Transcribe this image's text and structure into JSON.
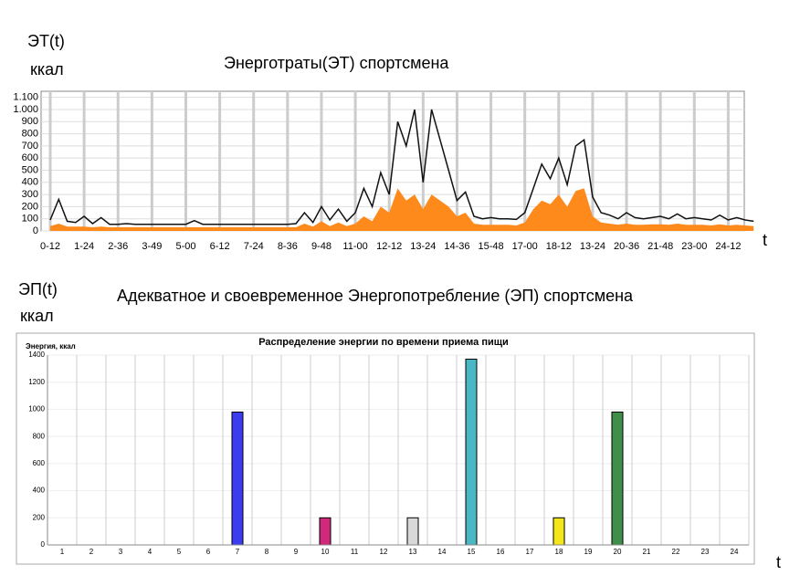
{
  "chart_data": [
    {
      "type": "line",
      "title": "Энерготраты(ЭТ) спортсмена",
      "y_label": "ЭТ(t)",
      "y_unit": "ккал",
      "x_label": "t",
      "categories": [
        "0-12",
        null,
        null,
        null,
        "1-24",
        null,
        null,
        null,
        "2-36",
        null,
        null,
        null,
        "3-49",
        null,
        null,
        null,
        "5-00",
        null,
        null,
        null,
        "6-12",
        null,
        null,
        null,
        "7-24",
        null,
        null,
        null,
        "8-36",
        null,
        null,
        null,
        "9-48",
        null,
        null,
        null,
        "11-00",
        null,
        null,
        null,
        "12-12",
        null,
        null,
        null,
        "13-24",
        null,
        null,
        null,
        "14-36",
        null,
        null,
        null,
        "15-48",
        null,
        null,
        null,
        "17-00",
        null,
        null,
        null,
        "18-12",
        null,
        null,
        null,
        "13-24",
        null,
        null,
        null,
        "20-36",
        null,
        null,
        null,
        "21-48",
        null,
        null,
        null,
        "23-00",
        null,
        null,
        null,
        "24-12",
        null,
        null,
        null
      ],
      "series": [
        {
          "color": "#ff8a1c",
          "fill": true,
          "values": [
            40,
            60,
            35,
            35,
            35,
            30,
            35,
            30,
            30,
            30,
            30,
            30,
            30,
            30,
            30,
            30,
            30,
            30,
            30,
            30,
            30,
            30,
            30,
            30,
            30,
            30,
            30,
            30,
            30,
            30,
            60,
            35,
            80,
            40,
            70,
            40,
            60,
            120,
            80,
            200,
            150,
            350,
            250,
            300,
            180,
            300,
            250,
            200,
            120,
            150,
            60,
            50,
            50,
            50,
            50,
            45,
            70,
            180,
            250,
            220,
            300,
            200,
            330,
            350,
            120,
            70,
            60,
            50,
            60,
            50,
            50,
            55,
            55,
            50,
            60,
            50,
            50,
            50,
            45,
            55,
            45,
            50,
            45,
            40
          ]
        },
        {
          "color": "#111111",
          "fill": false,
          "values": [
            90,
            260,
            80,
            70,
            120,
            60,
            110,
            55,
            55,
            60,
            55,
            55,
            55,
            55,
            55,
            55,
            55,
            85,
            55,
            55,
            55,
            55,
            55,
            55,
            55,
            55,
            55,
            55,
            55,
            60,
            150,
            70,
            200,
            90,
            180,
            80,
            150,
            350,
            200,
            480,
            300,
            900,
            700,
            1000,
            400,
            1000,
            750,
            500,
            250,
            320,
            120,
            100,
            110,
            100,
            100,
            95,
            150,
            350,
            550,
            430,
            600,
            380,
            700,
            750,
            280,
            150,
            130,
            100,
            150,
            110,
            100,
            110,
            120,
            100,
            140,
            100,
            110,
            100,
            90,
            130,
            90,
            110,
            90,
            80
          ]
        }
      ],
      "ylim": [
        0,
        1150
      ],
      "yticks": [
        0,
        100,
        200,
        300,
        400,
        500,
        600,
        700,
        800,
        900,
        {
          "value": 1000,
          "label": "1.000"
        },
        {
          "value": 1100,
          "label": "1.100"
        }
      ],
      "grid": true
    },
    {
      "type": "bar",
      "heading": "Адекватное и своевременное Энергопотребление (ЭП) спортсмена",
      "y_label": "ЭП(t)",
      "y_unit": "ккал",
      "x_label": "t",
      "title": "Распределение энергии по времени приема пищи",
      "y_axis_title": "Энергия, ккал",
      "categories": [
        1,
        2,
        3,
        4,
        5,
        6,
        7,
        8,
        9,
        10,
        11,
        12,
        13,
        14,
        15,
        16,
        17,
        18,
        19,
        20,
        21,
        22,
        23,
        24
      ],
      "values": [
        null,
        null,
        null,
        null,
        null,
        null,
        980,
        null,
        null,
        200,
        null,
        null,
        200,
        null,
        1370,
        null,
        null,
        200,
        null,
        980,
        null,
        null,
        null,
        null
      ],
      "colors": [
        null,
        null,
        null,
        null,
        null,
        null,
        "#3b3bf0",
        null,
        null,
        "#d0287a",
        null,
        null,
        "#d8d8d8",
        null,
        "#4ab8c4",
        null,
        null,
        "#f5e61a",
        null,
        "#3f8f4a",
        null,
        null,
        null,
        null
      ],
      "ylim": [
        0,
        1400
      ],
      "yticks": [
        0,
        200,
        400,
        600,
        800,
        1000,
        1200,
        1400
      ],
      "grid": true
    }
  ]
}
